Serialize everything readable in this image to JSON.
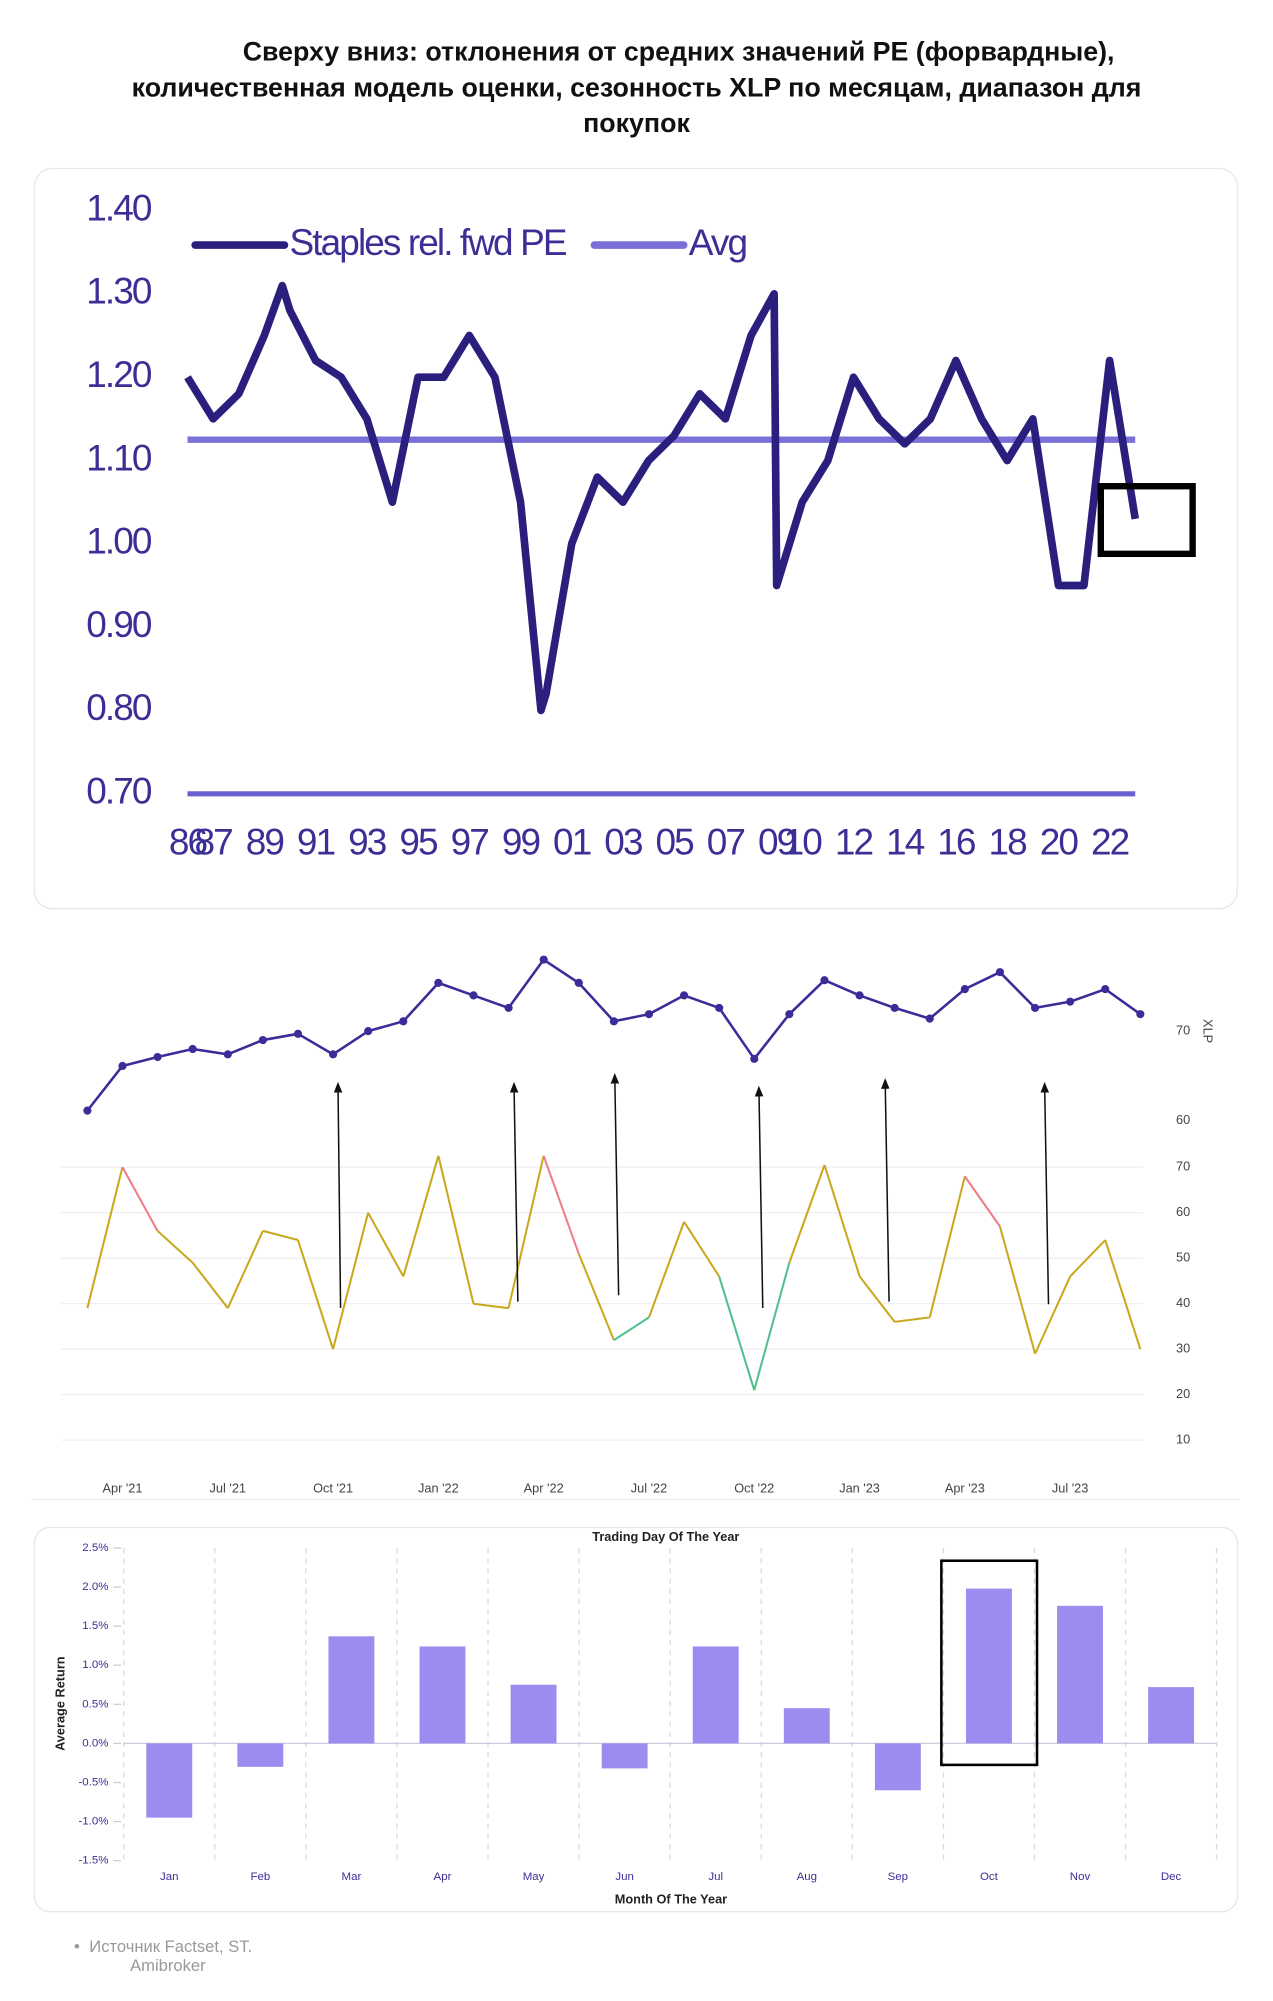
{
  "title_lines": [
    "Сверху вниз: отклонения от средних значений PE (форвардные),",
    "количественная модель оценки, сезонность XLP по месяцам, диапазон для",
    "покупок"
  ],
  "chart_data": [
    {
      "type": "line",
      "xlim": [
        1986,
        2023
      ],
      "ylim": [
        0.7,
        1.4
      ],
      "yticks": [
        {
          "value": 0.7,
          "label": "0.70"
        },
        {
          "value": 0.8,
          "label": "0.80"
        },
        {
          "value": 0.9,
          "label": "0.90"
        },
        {
          "value": 1.0,
          "label": "1.00"
        },
        {
          "value": 1.1,
          "label": "1.10"
        },
        {
          "value": 1.2,
          "label": "1.20"
        },
        {
          "value": 1.3,
          "label": "1.30"
        },
        {
          "value": 1.4,
          "label": "1.40"
        }
      ],
      "xticks": [
        {
          "value": 1986,
          "label": "86"
        },
        {
          "value": 1987,
          "label": "87"
        },
        {
          "value": 1989,
          "label": "89"
        },
        {
          "value": 1991,
          "label": "91"
        },
        {
          "value": 1993,
          "label": "93"
        },
        {
          "value": 1995,
          "label": "95"
        },
        {
          "value": 1997,
          "label": "97"
        },
        {
          "value": 1999,
          "label": "99"
        },
        {
          "value": 2001,
          "label": "01"
        },
        {
          "value": 2003,
          "label": "03"
        },
        {
          "value": 2005,
          "label": "05"
        },
        {
          "value": 2007,
          "label": "07"
        },
        {
          "value": 2009,
          "label": "09"
        },
        {
          "value": 2010,
          "label": "10"
        },
        {
          "value": 2012,
          "label": "12"
        },
        {
          "value": 2014,
          "label": "14"
        },
        {
          "value": 2016,
          "label": "16"
        },
        {
          "value": 2018,
          "label": "18"
        },
        {
          "value": 2020,
          "label": "20"
        },
        {
          "value": 2022,
          "label": "22"
        }
      ],
      "series": [
        {
          "name": "Staples rel. fwd PE",
          "color": "#2b1f7e",
          "x": [
            1986,
            1987,
            1988,
            1989,
            1989.7,
            1990,
            1991,
            1992,
            1993,
            1994,
            1995,
            1996,
            1997,
            1998,
            1999,
            1999.8,
            2000,
            2001,
            2002,
            2003,
            2004,
            2005,
            2006,
            2007,
            2008,
            2008.9,
            2009,
            2010,
            2011,
            2012,
            2013,
            2014,
            2015,
            2016,
            2017,
            2018,
            2019,
            2020,
            2021,
            2022,
            2023
          ],
          "values": [
            1.2,
            1.15,
            1.18,
            1.25,
            1.31,
            1.28,
            1.22,
            1.2,
            1.15,
            1.05,
            1.2,
            1.2,
            1.25,
            1.2,
            1.05,
            0.8,
            0.82,
            1.0,
            1.08,
            1.05,
            1.1,
            1.13,
            1.18,
            1.15,
            1.25,
            1.3,
            0.95,
            1.05,
            1.1,
            1.2,
            1.15,
            1.12,
            1.15,
            1.22,
            1.15,
            1.1,
            1.15,
            0.95,
            0.95,
            1.22,
            1.03
          ]
        },
        {
          "name": "Avg",
          "color": "#7b6fd8",
          "x": [
            1986,
            2023
          ],
          "values": [
            1.125,
            1.125
          ]
        }
      ]
    },
    {
      "type": "line",
      "y_label": "XLP",
      "color": "#3a2c99",
      "markers": true,
      "xlim": [
        "2021-02",
        "2023-09"
      ],
      "ylim": [
        60,
        80
      ],
      "yticks": [
        60,
        70
      ],
      "x": [
        "2021-03",
        "2021-04",
        "2021-05",
        "2021-06",
        "2021-07",
        "2021-08",
        "2021-09",
        "2021-10",
        "2021-11",
        "2021-12",
        "2022-01",
        "2022-02",
        "2022-03",
        "2022-04",
        "2022-05",
        "2022-06",
        "2022-07",
        "2022-08",
        "2022-09",
        "2022-10",
        "2022-11",
        "2022-12",
        "2023-01",
        "2023-02",
        "2023-03",
        "2023-04",
        "2023-05",
        "2023-06",
        "2023-07",
        "2023-08",
        "2023-09"
      ],
      "values": [
        61.1,
        66.1,
        67.1,
        68.0,
        67.4,
        69.0,
        69.7,
        67.4,
        70.0,
        71.1,
        75.4,
        74.0,
        72.6,
        78.0,
        75.4,
        71.1,
        71.9,
        74.0,
        72.6,
        66.9,
        71.9,
        75.7,
        74.0,
        72.6,
        71.4,
        74.7,
        76.6,
        72.6,
        73.3,
        74.7,
        71.9
      ]
    },
    {
      "type": "line",
      "grid": true,
      "band_colors": {
        "high": "#f07a8a",
        "mid": "#c9a820",
        "low": "#4fbf8c"
      },
      "bands": [
        35,
        60
      ],
      "xlim": [
        "2021-02",
        "2023-09"
      ],
      "ylim": [
        2,
        80
      ],
      "yticks": [
        10,
        20,
        30,
        40,
        50,
        60,
        70
      ],
      "xticks": [
        {
          "value": "2021-04",
          "label": "Apr '21"
        },
        {
          "value": "2021-07",
          "label": "Jul '21"
        },
        {
          "value": "2021-10",
          "label": "Oct '21"
        },
        {
          "value": "2022-01",
          "label": "Jan '22"
        },
        {
          "value": "2022-04",
          "label": "Apr '22"
        },
        {
          "value": "2022-07",
          "label": "Jul '22"
        },
        {
          "value": "2022-10",
          "label": "Oct '22"
        },
        {
          "value": "2023-01",
          "label": "Jan '23"
        },
        {
          "value": "2023-04",
          "label": "Apr '23"
        },
        {
          "value": "2023-07",
          "label": "Jul '23"
        }
      ],
      "x": [
        "2021-03",
        "2021-04",
        "2021-05",
        "2021-06",
        "2021-07",
        "2021-08",
        "2021-09",
        "2021-10",
        "2021-11",
        "2021-12",
        "2022-01",
        "2022-02",
        "2022-03",
        "2022-04",
        "2022-05",
        "2022-06",
        "2022-07",
        "2022-08",
        "2022-09",
        "2022-10",
        "2022-11",
        "2022-12",
        "2023-01",
        "2023-02",
        "2023-03",
        "2023-04",
        "2023-05",
        "2023-06",
        "2023-07",
        "2023-08",
        "2023-09"
      ],
      "values": [
        39,
        70,
        56,
        49,
        39,
        56,
        54,
        30,
        60,
        46,
        72.5,
        40,
        39,
        72.5,
        51,
        32,
        37,
        58,
        46,
        21,
        49,
        70.5,
        46,
        36,
        37,
        68,
        57,
        29,
        46,
        54,
        30
      ]
    },
    {
      "type": "bar",
      "title": "Trading Day Of The Year",
      "x_label": "Month Of The Year",
      "y_label": "Average Return",
      "color": "#9d8cf0",
      "categories": [
        "Jan",
        "Feb",
        "Mar",
        "Apr",
        "May",
        "Jun",
        "Jul",
        "Aug",
        "Sep",
        "Oct",
        "Nov",
        "Dec"
      ],
      "values": [
        -0.95,
        -0.3,
        1.37,
        1.24,
        0.75,
        -0.32,
        1.24,
        0.45,
        -0.6,
        1.98,
        1.76,
        0.72
      ],
      "ylim": [
        -1.5,
        2.5
      ],
      "yticks": [
        {
          "value": -1.5,
          "label": "-1.5%"
        },
        {
          "value": -1.0,
          "label": "-1.0%"
        },
        {
          "value": -0.5,
          "label": "-0.5%"
        },
        {
          "value": 0,
          "label": "0.0%"
        },
        {
          "value": 0.5,
          "label": "0.5%"
        },
        {
          "value": 1.0,
          "label": "1.0%"
        },
        {
          "value": 1.5,
          "label": "1.5%"
        },
        {
          "value": 2.0,
          "label": "2.0%"
        },
        {
          "value": 2.5,
          "label": "2.5%"
        }
      ]
    }
  ],
  "source_lines": [
    "Источник Factset, ST.",
    "Amibroker"
  ]
}
